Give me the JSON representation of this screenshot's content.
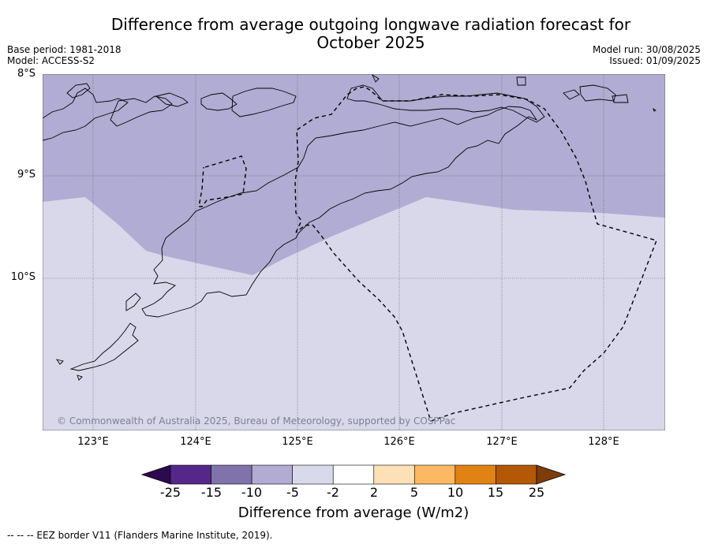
{
  "header": {
    "title_line1": "Difference from average outgoing longwave radiation forecast for",
    "title_line2": "October 2025",
    "base_period": "Base period: 1981-2018",
    "model": "Model: ACCESS-S2",
    "model_run": "Model run: 30/08/2025",
    "issued": "Issued: 01/09/2025"
  },
  "map": {
    "lat_labels": [
      "8°S",
      "9°S",
      "10°S"
    ],
    "lon_labels": [
      "123°E",
      "124°E",
      "125°E",
      "126°E",
      "127°E",
      "128°E"
    ],
    "copyright": "© Commonwealth of Australia 2025, Bureau of Meteorology, supported by COSPPac",
    "colors": {
      "band_-10_-5": "#b1acd3",
      "band_-5_-2": "#d8d8ea",
      "coastline": "#000000",
      "eez": "#000000",
      "grid": "#555555"
    }
  },
  "colorbar": {
    "ticks": [
      "-25",
      "-15",
      "-10",
      "-5",
      "-2",
      "2",
      "5",
      "10",
      "15",
      "25"
    ],
    "colors": [
      "#2d0a4e",
      "#542788",
      "#8073ac",
      "#b2abd2",
      "#d8daeb",
      "#ffffff",
      "#fee0b6",
      "#fdb863",
      "#e08214",
      "#b35806",
      "#7f3b08"
    ],
    "label": "Difference from average (W/m2)"
  },
  "footer": {
    "credit": "--  --  -- EEZ border V11 (Flanders Marine Institute, 2019)."
  }
}
